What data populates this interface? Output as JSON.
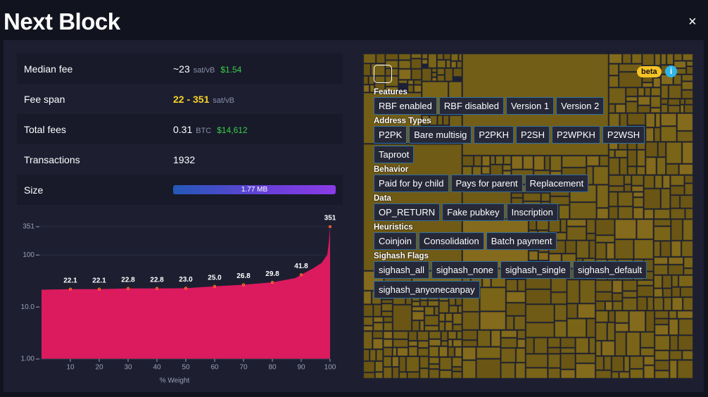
{
  "header": {
    "title": "Next Block",
    "close": "×"
  },
  "stats": [
    {
      "label": "Median fee",
      "value": "~23",
      "unit": "sat/vB",
      "fiat": "$1.54"
    },
    {
      "label": "Fee span",
      "value": "22 - 351",
      "unit": "sat/vB"
    },
    {
      "label": "Total fees",
      "value": "0.31",
      "unit": "BTC",
      "fiat": "$14,612"
    },
    {
      "label": "Transactions",
      "value": "1932"
    },
    {
      "label": "Size",
      "bar_label": "1.77 MB"
    }
  ],
  "chart_data": {
    "type": "area",
    "x_label": "% Weight",
    "log_scale": true,
    "grid": true,
    "xlim": [
      0,
      100
    ],
    "xticks": [
      10,
      20,
      30,
      40,
      50,
      60,
      70,
      80,
      90,
      100
    ],
    "ylim": [
      1,
      351
    ],
    "yticks": [
      {
        "value": 1,
        "label": "1.00"
      },
      {
        "value": 10,
        "label": "10.0"
      },
      100,
      351
    ],
    "curve": {
      "color": "#dc1a5e",
      "x": [
        0,
        10,
        20,
        30,
        40,
        50,
        60,
        70,
        80,
        88,
        90,
        94,
        97,
        99,
        99.5,
        100
      ],
      "values": [
        21.5,
        22.1,
        22.1,
        22.8,
        22.8,
        23.0,
        25.0,
        26.8,
        29.8,
        36,
        41.8,
        55,
        70,
        100,
        160,
        351
      ]
    },
    "points": {
      "color": "#ff2a2a",
      "x": [
        10,
        20,
        30,
        40,
        50,
        60,
        70,
        80,
        90,
        100
      ],
      "values": [
        22.1,
        22.1,
        22.8,
        22.8,
        23.0,
        25.0,
        26.8,
        29.8,
        41.8,
        351
      ],
      "value_labels": [
        "22.1",
        "22.1",
        "22.8",
        "22.8",
        "23.0",
        "25.0",
        "26.8",
        "29.8",
        "41.8",
        "351"
      ]
    }
  },
  "filters": {
    "beta": "beta",
    "info": "i",
    "groups": [
      {
        "title": "Features",
        "tags": [
          "RBF enabled",
          "RBF disabled",
          "Version 1",
          "Version 2"
        ]
      },
      {
        "title": "Address Types",
        "tags": [
          "P2PK",
          "Bare multisig",
          "P2PKH",
          "P2SH",
          "P2WPKH",
          "P2WSH",
          "Taproot"
        ]
      },
      {
        "title": "Behavior",
        "tags": [
          "Paid for by child",
          "Pays for parent",
          "Replacement"
        ]
      },
      {
        "title": "Data",
        "tags": [
          "OP_RETURN",
          "Fake pubkey",
          "Inscription"
        ]
      },
      {
        "title": "Heuristics",
        "tags": [
          "Coinjoin",
          "Consolidation",
          "Batch payment"
        ]
      },
      {
        "title": "Sighash Flags",
        "tags": [
          "sighash_all",
          "sighash_none",
          "sighash_single",
          "sighash_default",
          "sighash_anyonecanpay"
        ]
      }
    ]
  }
}
